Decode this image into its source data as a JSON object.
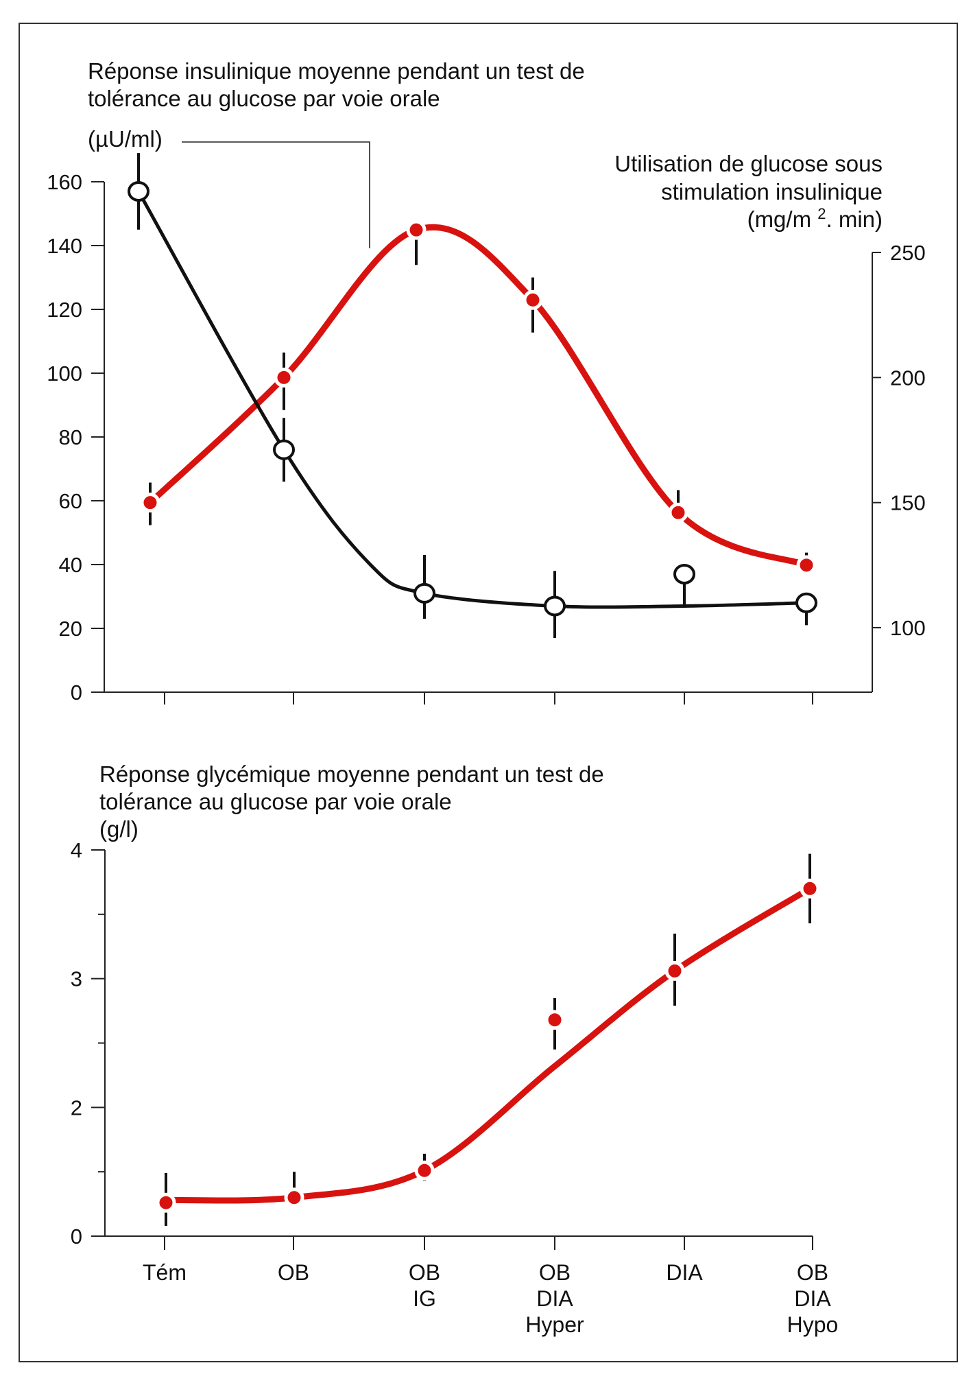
{
  "colors": {
    "red": "#d8120e",
    "ink": "#111111",
    "frame": "#333333"
  },
  "chart_data": [
    {
      "type": "line",
      "title": "Réponse insulinique moyenne pendant un test de tolérance au glucose par voie orale",
      "title_lines": [
        "Réponse insulinique moyenne pendant un test de",
        "tolérance au glucose par voie orale"
      ],
      "ylabel": "(µU/ml)",
      "ylabel_right_lines": [
        "Utilisation de glucose sous",
        "stimulation insulinique",
        "(mg/m ², min)"
      ],
      "ylabel_right_text": {
        "l1": "Utilisation de glucose sous",
        "l2": "stimulation insulinique",
        "l3a": "(mg/m ",
        "l3sup": "2",
        "l3b": ". min)"
      },
      "categories": [
        "Tém",
        "OB",
        "OB IG",
        "OB DIA Hyper",
        "DIA",
        "OB DIA Hypo"
      ],
      "ylim": [
        0,
        160
      ],
      "yticks": [
        0,
        20,
        40,
        60,
        80,
        100,
        120,
        140,
        160
      ],
      "ylim_right": [
        76,
        250
      ],
      "yticks_right": [
        100,
        150,
        200,
        250
      ],
      "series": [
        {
          "name": "Réponse insulinique (µU/ml)",
          "axis": "left",
          "marker": "open-circle",
          "values": [
            157,
            76,
            31,
            27,
            37,
            28
          ],
          "err_low": [
            145,
            66,
            23,
            17,
            27,
            21
          ],
          "err_high": [
            169,
            86,
            43,
            38,
            37,
            28
          ]
        },
        {
          "name": "Utilisation de glucose (mg/m². min)",
          "axis": "right",
          "marker": "red-dot",
          "values": [
            150,
            200,
            259,
            231,
            146,
            125
          ],
          "err_low": [
            141,
            187,
            245,
            218,
            146,
            125
          ],
          "err_high": [
            158,
            210,
            259,
            240,
            155,
            130
          ]
        }
      ]
    },
    {
      "type": "line",
      "title": "Réponse glycémique moyenne pendant un test de tolérance au glucose par voie orale",
      "title_lines": [
        "Réponse glycémique moyenne pendant un test de",
        "tolérance au glucose par voie orale"
      ],
      "ylabel": "(g/l)",
      "categories": [
        "Tém",
        "OB",
        "OB IG",
        "OB DIA Hyper",
        "DIA",
        "OB DIA Hypo"
      ],
      "category_lines": [
        [
          "Tém"
        ],
        [
          "OB"
        ],
        [
          "OB",
          "IG"
        ],
        [
          "OB",
          "DIA",
          "Hyper"
        ],
        [
          "DIA"
        ],
        [
          "OB",
          "DIA",
          "Hypo"
        ]
      ],
      "ylim": [
        1,
        4
      ],
      "yticks": [
        {
          "value": 1,
          "label": "0"
        },
        {
          "value": 1.5,
          "label": ""
        },
        {
          "value": 2,
          "label": "2"
        },
        {
          "value": 2.5,
          "label": ""
        },
        {
          "value": 3,
          "label": "3"
        },
        {
          "value": 3.5,
          "label": ""
        },
        {
          "value": 4,
          "label": "4"
        }
      ],
      "series": [
        {
          "name": "Réponse glycémique (g/l)",
          "marker": "red-dot",
          "values": [
            1.26,
            1.3,
            1.51,
            2.68,
            3.06,
            3.7
          ],
          "err_low": [
            1.08,
            1.3,
            1.43,
            2.45,
            2.79,
            3.43
          ],
          "err_high": [
            1.49,
            1.5,
            1.64,
            2.85,
            3.35,
            3.97
          ]
        }
      ]
    }
  ]
}
